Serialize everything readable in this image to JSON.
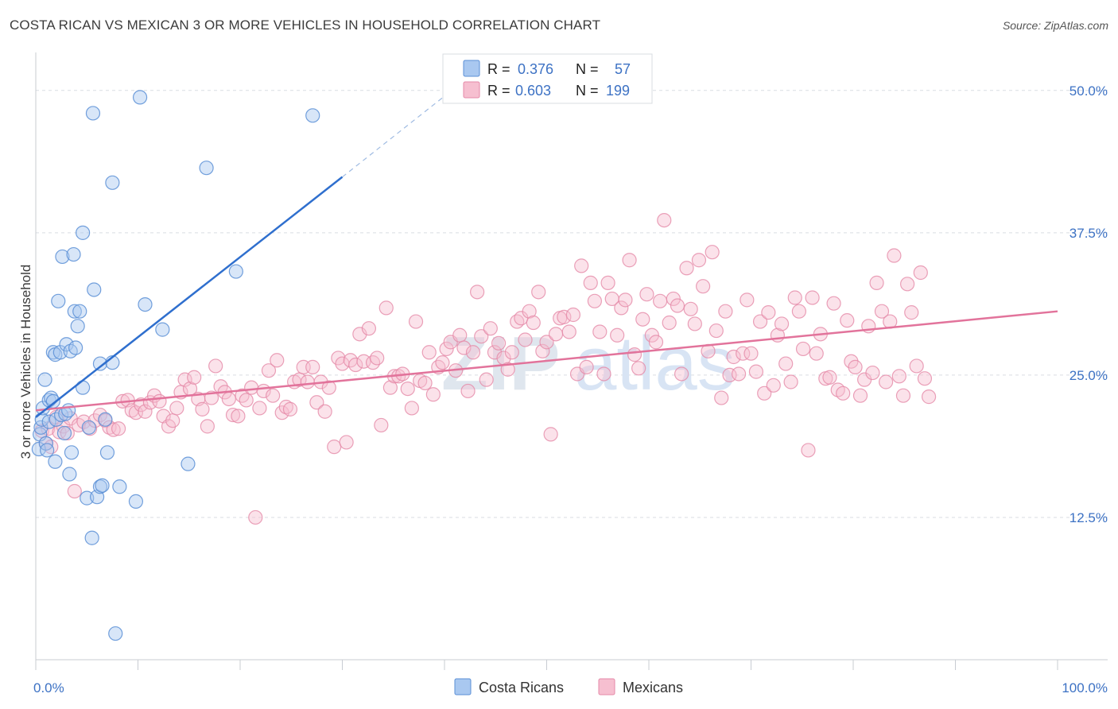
{
  "title": "COSTA RICAN VS MEXICAN 3 OR MORE VEHICLES IN HOUSEHOLD CORRELATION CHART",
  "source": "Source: ZipAtlas.com",
  "watermark": {
    "zip": "ZIP",
    "atlas": "atlas"
  },
  "colors": {
    "blue_fill": "#a9c8f0",
    "blue_stroke": "#5b8fd6",
    "blue_line": "#2f6fce",
    "pink_fill": "#f6bfd0",
    "pink_stroke": "#e58aa8",
    "pink_line": "#e2739b",
    "grid": "#d9dde2",
    "accent_text": "#3d72c4"
  },
  "legend": {
    "r_label": "R =",
    "n_label": "N =",
    "rows": [
      {
        "series": "Costa Ricans",
        "r": "0.376",
        "n": "57"
      },
      {
        "series": "Mexicans",
        "r": "0.603",
        "n": "199"
      }
    ]
  },
  "chart_data": {
    "type": "scatter",
    "title": "COSTA RICAN VS MEXICAN 3 OR MORE VEHICLES IN HOUSEHOLD CORRELATION CHART",
    "xlabel": "",
    "ylabel": "3 or more Vehicles in Household",
    "xlim": [
      0,
      100
    ],
    "ylim": [
      0,
      52.5
    ],
    "x_tick_labels": [
      "0.0%",
      "100.0%"
    ],
    "y_ticks": [
      12.5,
      25.0,
      37.5,
      50.0
    ],
    "y_tick_labels": [
      "12.5%",
      "25.0%",
      "37.5%",
      "50.0%"
    ],
    "grid": true,
    "legend_position": "top-center",
    "series": [
      {
        "name": "Costa Ricans",
        "r": 0.376,
        "n": 57,
        "trend": {
          "x0": 0,
          "y0": 21.3,
          "x1": 30,
          "y1": 42.4,
          "dashed_to_x": 40,
          "dashed_to_y": 49.5
        },
        "points": [
          [
            0.3,
            18.5
          ],
          [
            0.4,
            19.8
          ],
          [
            0.5,
            20.4
          ],
          [
            0.6,
            21.1
          ],
          [
            0.7,
            22.1
          ],
          [
            0.9,
            24.6
          ],
          [
            1.0,
            19.0
          ],
          [
            1.1,
            18.4
          ],
          [
            1.3,
            20.9
          ],
          [
            1.3,
            22.8
          ],
          [
            1.5,
            23.0
          ],
          [
            1.7,
            22.7
          ],
          [
            1.7,
            27.0
          ],
          [
            1.9,
            26.8
          ],
          [
            1.9,
            17.4
          ],
          [
            2.0,
            21.1
          ],
          [
            2.2,
            31.5
          ],
          [
            2.4,
            27.0
          ],
          [
            2.5,
            21.5
          ],
          [
            2.6,
            35.4
          ],
          [
            2.8,
            19.9
          ],
          [
            2.9,
            21.6
          ],
          [
            3.0,
            27.7
          ],
          [
            3.2,
            21.9
          ],
          [
            3.3,
            16.3
          ],
          [
            3.4,
            27.1
          ],
          [
            3.5,
            18.2
          ],
          [
            3.7,
            35.6
          ],
          [
            3.8,
            30.6
          ],
          [
            3.9,
            27.4
          ],
          [
            4.1,
            29.3
          ],
          [
            4.3,
            30.6
          ],
          [
            4.6,
            37.5
          ],
          [
            4.6,
            23.9
          ],
          [
            5.0,
            14.2
          ],
          [
            5.2,
            20.4
          ],
          [
            5.5,
            10.7
          ],
          [
            5.6,
            48.0
          ],
          [
            5.7,
            32.5
          ],
          [
            6.0,
            14.3
          ],
          [
            6.3,
            15.2
          ],
          [
            6.3,
            26.0
          ],
          [
            6.5,
            15.3
          ],
          [
            6.8,
            21.1
          ],
          [
            7.0,
            18.2
          ],
          [
            7.5,
            26.1
          ],
          [
            7.5,
            41.9
          ],
          [
            7.8,
            2.3
          ],
          [
            8.2,
            15.2
          ],
          [
            9.8,
            13.9
          ],
          [
            10.2,
            49.4
          ],
          [
            10.7,
            31.2
          ],
          [
            12.4,
            29.0
          ],
          [
            14.9,
            17.2
          ],
          [
            16.7,
            43.2
          ],
          [
            19.6,
            34.1
          ],
          [
            27.1,
            47.8
          ]
        ]
      },
      {
        "name": "Mexicans",
        "r": 0.603,
        "n": 199,
        "trend": {
          "x0": 0,
          "y0": 21.9,
          "x1": 100,
          "y1": 30.6
        },
        "points": [
          [
            0.6,
            20.1
          ],
          [
            1.0,
            19.0
          ],
          [
            1.2,
            20.3
          ],
          [
            1.5,
            18.7
          ],
          [
            2.0,
            21.3
          ],
          [
            2.3,
            20.0
          ],
          [
            2.7,
            20.5
          ],
          [
            3.1,
            19.9
          ],
          [
            3.4,
            21.2
          ],
          [
            3.8,
            14.8
          ],
          [
            4.2,
            20.6
          ],
          [
            4.7,
            20.9
          ],
          [
            5.3,
            20.3
          ],
          [
            5.8,
            21.0
          ],
          [
            6.3,
            21.5
          ],
          [
            6.8,
            21.0
          ],
          [
            7.2,
            20.4
          ],
          [
            7.6,
            20.2
          ],
          [
            8.1,
            20.3
          ],
          [
            8.5,
            22.7
          ],
          [
            9.0,
            22.8
          ],
          [
            9.4,
            21.9
          ],
          [
            9.8,
            21.7
          ],
          [
            10.3,
            22.4
          ],
          [
            10.7,
            21.8
          ],
          [
            11.2,
            22.6
          ],
          [
            11.6,
            23.2
          ],
          [
            12.1,
            22.7
          ],
          [
            12.5,
            21.4
          ],
          [
            13.0,
            20.5
          ],
          [
            13.4,
            21.0
          ],
          [
            13.8,
            22.1
          ],
          [
            14.2,
            23.5
          ],
          [
            14.6,
            24.6
          ],
          [
            15.1,
            23.8
          ],
          [
            15.5,
            24.8
          ],
          [
            15.9,
            22.9
          ],
          [
            16.3,
            22.0
          ],
          [
            16.8,
            20.5
          ],
          [
            17.2,
            23.0
          ],
          [
            17.6,
            25.8
          ],
          [
            18.1,
            24.0
          ],
          [
            18.5,
            23.5
          ],
          [
            18.9,
            22.9
          ],
          [
            19.3,
            21.5
          ],
          [
            19.8,
            21.4
          ],
          [
            20.2,
            23.2
          ],
          [
            20.6,
            22.8
          ],
          [
            21.1,
            23.9
          ],
          [
            21.5,
            12.5
          ],
          [
            21.9,
            22.1
          ],
          [
            22.3,
            23.6
          ],
          [
            22.8,
            25.4
          ],
          [
            23.2,
            23.2
          ],
          [
            23.6,
            26.3
          ],
          [
            24.1,
            21.7
          ],
          [
            24.5,
            22.2
          ],
          [
            24.9,
            22.0
          ],
          [
            25.3,
            24.4
          ],
          [
            25.8,
            24.6
          ],
          [
            26.2,
            25.7
          ],
          [
            26.6,
            24.4
          ],
          [
            27.1,
            25.7
          ],
          [
            27.5,
            22.6
          ],
          [
            27.9,
            24.4
          ],
          [
            28.3,
            21.8
          ],
          [
            28.7,
            23.9
          ],
          [
            29.2,
            18.7
          ],
          [
            29.6,
            26.5
          ],
          [
            30.0,
            26.0
          ],
          [
            30.4,
            19.1
          ],
          [
            30.8,
            26.3
          ],
          [
            31.3,
            25.9
          ],
          [
            31.7,
            28.6
          ],
          [
            32.1,
            26.2
          ],
          [
            32.6,
            29.1
          ],
          [
            33.0,
            26.1
          ],
          [
            33.4,
            26.5
          ],
          [
            33.8,
            20.6
          ],
          [
            34.3,
            30.9
          ],
          [
            34.7,
            23.9
          ],
          [
            35.1,
            24.9
          ],
          [
            35.5,
            24.9
          ],
          [
            35.9,
            25.1
          ],
          [
            36.4,
            23.8
          ],
          [
            36.8,
            22.1
          ],
          [
            37.2,
            29.7
          ],
          [
            37.6,
            24.5
          ],
          [
            38.1,
            24.3
          ],
          [
            38.5,
            27.0
          ],
          [
            38.9,
            23.3
          ],
          [
            39.4,
            25.7
          ],
          [
            39.8,
            26.1
          ],
          [
            40.2,
            27.3
          ],
          [
            40.6,
            27.9
          ],
          [
            41.1,
            25.4
          ],
          [
            41.5,
            28.5
          ],
          [
            41.9,
            27.4
          ],
          [
            42.3,
            23.6
          ],
          [
            42.8,
            27.0
          ],
          [
            43.2,
            32.3
          ],
          [
            43.6,
            28.4
          ],
          [
            44.1,
            24.6
          ],
          [
            44.5,
            29.1
          ],
          [
            44.9,
            27.0
          ],
          [
            45.3,
            27.8
          ],
          [
            45.8,
            26.5
          ],
          [
            46.2,
            25.5
          ],
          [
            46.6,
            27.0
          ],
          [
            47.1,
            29.7
          ],
          [
            47.5,
            30.0
          ],
          [
            47.9,
            28.1
          ],
          [
            48.3,
            30.6
          ],
          [
            48.7,
            29.6
          ],
          [
            49.2,
            32.3
          ],
          [
            49.6,
            27.1
          ],
          [
            50.0,
            27.9
          ],
          [
            50.4,
            19.8
          ],
          [
            50.9,
            28.6
          ],
          [
            51.3,
            30.0
          ],
          [
            51.7,
            30.1
          ],
          [
            52.2,
            28.8
          ],
          [
            52.6,
            30.3
          ],
          [
            53.0,
            25.1
          ],
          [
            53.4,
            34.6
          ],
          [
            53.9,
            25.7
          ],
          [
            54.3,
            33.1
          ],
          [
            54.7,
            31.5
          ],
          [
            55.2,
            28.8
          ],
          [
            55.6,
            25.1
          ],
          [
            56.0,
            33.1
          ],
          [
            56.4,
            31.7
          ],
          [
            56.9,
            28.5
          ],
          [
            57.3,
            30.9
          ],
          [
            57.7,
            31.6
          ],
          [
            58.1,
            35.1
          ],
          [
            58.6,
            26.8
          ],
          [
            59.0,
            25.6
          ],
          [
            59.4,
            29.9
          ],
          [
            59.8,
            32.1
          ],
          [
            60.3,
            28.5
          ],
          [
            60.7,
            27.9
          ],
          [
            61.1,
            31.5
          ],
          [
            61.5,
            38.6
          ],
          [
            62.0,
            29.6
          ],
          [
            62.4,
            31.7
          ],
          [
            62.8,
            31.1
          ],
          [
            63.2,
            25.1
          ],
          [
            63.7,
            34.4
          ],
          [
            64.1,
            30.8
          ],
          [
            64.5,
            29.5
          ],
          [
            64.9,
            35.1
          ],
          [
            65.3,
            32.8
          ],
          [
            65.8,
            27.1
          ],
          [
            66.2,
            35.8
          ],
          [
            66.6,
            28.9
          ],
          [
            67.1,
            23.0
          ],
          [
            67.5,
            30.6
          ],
          [
            67.9,
            25.0
          ],
          [
            68.3,
            26.6
          ],
          [
            68.8,
            25.1
          ],
          [
            69.2,
            26.9
          ],
          [
            69.6,
            31.6
          ],
          [
            70.0,
            26.9
          ],
          [
            70.5,
            25.3
          ],
          [
            70.9,
            29.7
          ],
          [
            71.3,
            23.4
          ],
          [
            71.7,
            30.5
          ],
          [
            72.2,
            24.1
          ],
          [
            72.6,
            28.5
          ],
          [
            73.0,
            29.5
          ],
          [
            73.4,
            26.0
          ],
          [
            73.9,
            24.4
          ],
          [
            74.3,
            31.8
          ],
          [
            74.7,
            30.6
          ],
          [
            75.1,
            27.3
          ],
          [
            75.6,
            18.4
          ],
          [
            76.0,
            31.8
          ],
          [
            76.4,
            26.9
          ],
          [
            76.8,
            28.6
          ],
          [
            77.3,
            24.7
          ],
          [
            77.7,
            24.8
          ],
          [
            78.1,
            31.3
          ],
          [
            78.5,
            23.7
          ],
          [
            79.0,
            23.4
          ],
          [
            79.4,
            29.8
          ],
          [
            79.8,
            26.2
          ],
          [
            80.2,
            25.7
          ],
          [
            80.7,
            23.2
          ],
          [
            81.1,
            24.6
          ],
          [
            81.5,
            29.3
          ],
          [
            81.9,
            25.2
          ],
          [
            82.3,
            33.1
          ],
          [
            82.8,
            30.6
          ],
          [
            83.2,
            24.4
          ],
          [
            83.6,
            29.7
          ],
          [
            84.0,
            35.5
          ],
          [
            84.5,
            24.9
          ],
          [
            84.9,
            23.2
          ],
          [
            85.3,
            33.0
          ],
          [
            85.7,
            30.5
          ],
          [
            86.2,
            25.8
          ],
          [
            86.6,
            34.0
          ],
          [
            87.0,
            24.7
          ],
          [
            87.4,
            23.1
          ]
        ]
      }
    ]
  }
}
